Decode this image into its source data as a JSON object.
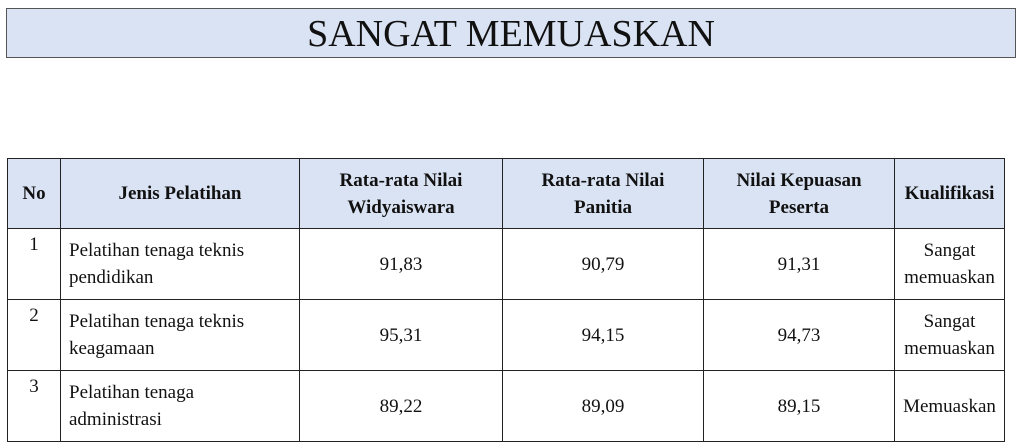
{
  "title": "SANGAT MEMUASKAN",
  "table": {
    "headers": [
      "No",
      "Jenis Pelatihan",
      "Rata-rata Nilai Widyaiswara",
      "Rata-rata Nilai Panitia",
      "Nilai Kepuasan Peserta",
      "Kualifikasi"
    ],
    "header_color": "#dae3f3",
    "rows": [
      {
        "no": "1",
        "jenis": "Pelatihan tenaga teknis pendidikan",
        "widyaiswara": "91,83",
        "panitia": "90,79",
        "kepuasan": "91,31",
        "kualifikasi": "Sangat memuaskan"
      },
      {
        "no": "2",
        "jenis": "Pelatihan tenaga teknis keagamaan",
        "widyaiswara": "95,31",
        "panitia": "94,15",
        "kepuasan": "94,73",
        "kualifikasi": "Sangat memuaskan"
      },
      {
        "no": "3",
        "jenis": "Pelatihan tenaga administrasi",
        "widyaiswara": "89,22",
        "panitia": "89,09",
        "kepuasan": "89,15",
        "kualifikasi": "Memuaskan"
      }
    ]
  }
}
